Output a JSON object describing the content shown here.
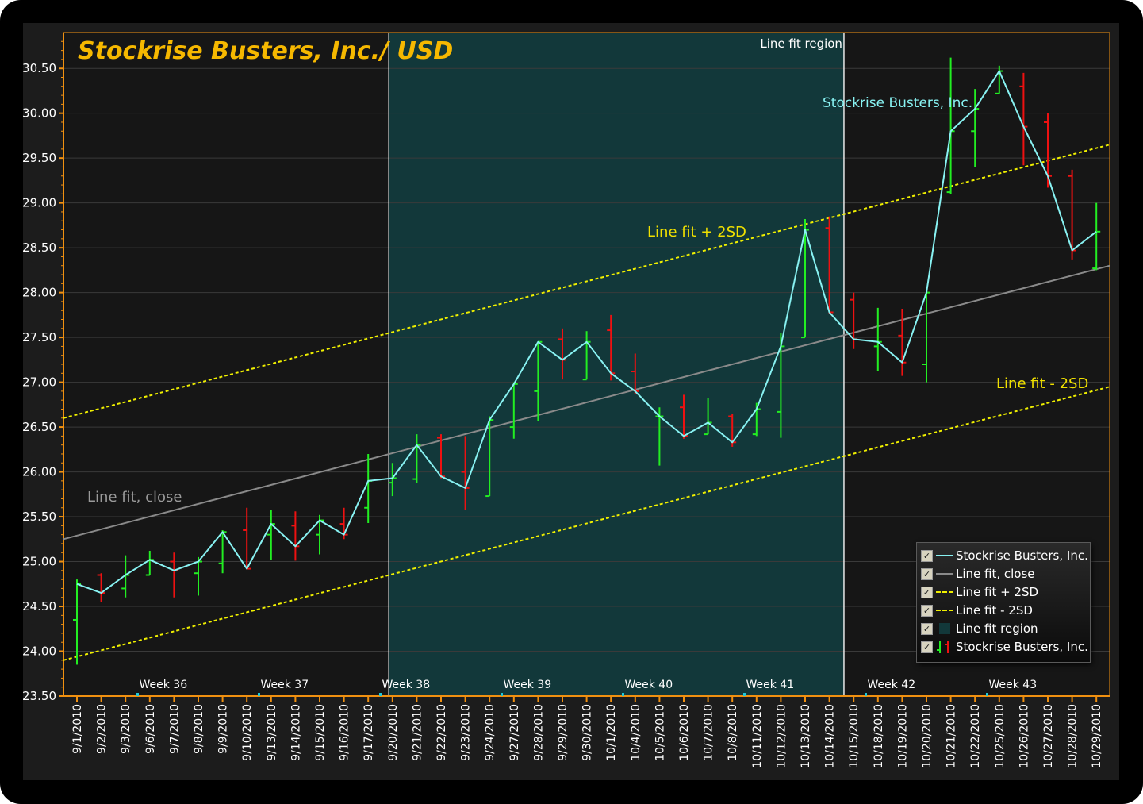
{
  "chart_data": {
    "type": "ohlc",
    "title": "Stockrise Busters, Inc./ USD",
    "ylim": [
      23.5,
      30.9
    ],
    "yticks": [
      "23.50",
      "24.00",
      "24.50",
      "25.00",
      "25.50",
      "26.00",
      "26.50",
      "27.00",
      "27.50",
      "28.00",
      "28.50",
      "29.00",
      "29.50",
      "30.00",
      "30.50"
    ],
    "dates": [
      "9/1/2010",
      "9/2/2010",
      "9/3/2010",
      "9/6/2010",
      "9/7/2010",
      "9/8/2010",
      "9/9/2010",
      "9/10/2010",
      "9/13/2010",
      "9/14/2010",
      "9/15/2010",
      "9/16/2010",
      "9/17/2010",
      "9/20/2010",
      "9/21/2010",
      "9/22/2010",
      "9/23/2010",
      "9/24/2010",
      "9/27/2010",
      "9/28/2010",
      "9/29/2010",
      "9/30/2010",
      "10/1/2010",
      "10/4/2010",
      "10/5/2010",
      "10/6/2010",
      "10/7/2010",
      "10/8/2010",
      "10/11/2010",
      "10/12/2010",
      "10/13/2010",
      "10/14/2010",
      "10/15/2010",
      "10/18/2010",
      "10/19/2010",
      "10/20/2010",
      "10/21/2010",
      "10/22/2010",
      "10/25/2010",
      "10/26/2010",
      "10/27/2010",
      "10/28/2010",
      "10/29/2010"
    ],
    "weeks": [
      {
        "label": "Week 36",
        "start": 2.5
      },
      {
        "label": "Week 37",
        "start": 7.5
      },
      {
        "label": "Week 38",
        "start": 12.5
      },
      {
        "label": "Week 39",
        "start": 17.5
      },
      {
        "label": "Week 40",
        "start": 22.5
      },
      {
        "label": "Week 41",
        "start": 27.5
      },
      {
        "label": "Week 42",
        "start": 32.5
      },
      {
        "label": "Week 43",
        "start": 37.5
      }
    ],
    "ohlc": [
      [
        24.35,
        24.8,
        23.85,
        24.75
      ],
      [
        24.85,
        24.87,
        24.55,
        24.65
      ],
      [
        24.7,
        25.07,
        24.6,
        24.85
      ],
      [
        24.85,
        25.12,
        24.85,
        25.02
      ],
      [
        25.0,
        25.1,
        24.6,
        24.9
      ],
      [
        24.87,
        25.05,
        24.62,
        25.0
      ],
      [
        24.98,
        25.35,
        24.87,
        25.33
      ],
      [
        25.35,
        25.6,
        24.92,
        24.92
      ],
      [
        25.3,
        25.58,
        25.02,
        25.42
      ],
      [
        25.4,
        25.56,
        25.01,
        25.17
      ],
      [
        25.3,
        25.52,
        25.08,
        25.46
      ],
      [
        25.42,
        25.6,
        25.25,
        25.3
      ],
      [
        25.6,
        26.2,
        25.43,
        25.9
      ],
      [
        25.88,
        26.1,
        25.73,
        25.93
      ],
      [
        25.92,
        26.42,
        25.88,
        26.3
      ],
      [
        26.38,
        26.42,
        25.93,
        25.95
      ],
      [
        26.0,
        26.4,
        25.58,
        25.82
      ],
      [
        25.73,
        26.62,
        25.73,
        26.58
      ],
      [
        26.5,
        27.0,
        26.37,
        26.98
      ],
      [
        26.9,
        27.45,
        26.57,
        27.45
      ],
      [
        27.48,
        27.6,
        27.03,
        27.25
      ],
      [
        27.03,
        27.57,
        27.03,
        27.45
      ],
      [
        27.58,
        27.75,
        27.02,
        27.1
      ],
      [
        27.12,
        27.32,
        26.87,
        26.9
      ],
      [
        26.62,
        26.72,
        26.07,
        26.62
      ],
      [
        26.72,
        26.86,
        26.37,
        26.4
      ],
      [
        26.42,
        26.82,
        26.42,
        26.55
      ],
      [
        26.62,
        26.65,
        26.28,
        26.33
      ],
      [
        26.42,
        26.77,
        26.4,
        26.7
      ],
      [
        26.67,
        27.55,
        26.38,
        27.4
      ],
      [
        27.5,
        28.82,
        27.5,
        28.7
      ],
      [
        28.72,
        28.85,
        27.76,
        27.78
      ],
      [
        27.92,
        28.0,
        27.37,
        27.48
      ],
      [
        27.4,
        27.83,
        27.12,
        27.45
      ],
      [
        27.52,
        27.82,
        27.07,
        27.22
      ],
      [
        27.2,
        28.03,
        27.0,
        28.0
      ],
      [
        29.12,
        30.62,
        29.1,
        29.8
      ],
      [
        29.8,
        30.27,
        29.4,
        30.05
      ],
      [
        30.22,
        30.53,
        30.22,
        30.47
      ],
      [
        30.3,
        30.45,
        29.42,
        29.85
      ],
      [
        29.9,
        30.0,
        29.17,
        29.3
      ],
      [
        29.3,
        29.37,
        28.37,
        28.47
      ],
      [
        28.27,
        29.0,
        28.25,
        28.68
      ]
    ],
    "fit": {
      "y_start": 25.25,
      "y_end": 28.3,
      "band_sd2": 1.35
    },
    "region": {
      "start": 12.85,
      "end": 31.6
    },
    "annotations": {
      "region_label": "Line fit region",
      "series_label": "Stockrise Busters, Inc.",
      "fit_label": "Line fit, close",
      "plus_label": "Line fit + 2SD",
      "minus_label": "Line fit - 2SD"
    },
    "legend": [
      "Stockrise Busters, Inc.",
      "Line fit, close",
      "Line fit + 2SD",
      "Line fit - 2SD",
      "Line fit region",
      "Stockrise Busters, Inc."
    ],
    "colors": {
      "background": "#161616",
      "up": "#22ee22",
      "down": "#ee1111",
      "close_line": "#88f2f2",
      "fit_line": "#8a8a8a",
      "band": "#f0f000",
      "region": "#12383a",
      "title": "#f6b800",
      "axis": "#f09010"
    }
  }
}
